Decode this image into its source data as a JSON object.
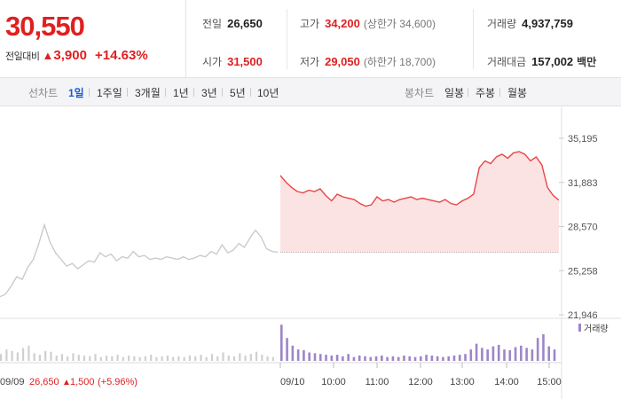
{
  "quote": {
    "price": "30,550",
    "change_label": "전일대비",
    "change_amount": "3,900",
    "change_percent": "+14.63%"
  },
  "stats": {
    "prev_close": {
      "label": "전일",
      "value": "26,650"
    },
    "open": {
      "label": "시가",
      "value": "31,500"
    },
    "high": {
      "label": "고가",
      "value": "34,200",
      "limit_label": "(상한가 34,600)"
    },
    "low": {
      "label": "저가",
      "value": "29,050",
      "limit_label": "(하한가 18,700)"
    },
    "volume": {
      "label": "거래량",
      "value": "4,937,759"
    },
    "trade_value": {
      "label": "거래대금",
      "value": "157,002",
      "unit": "백만"
    }
  },
  "line_tabs": {
    "label": "선차트",
    "items": [
      "1일",
      "1주일",
      "3개월",
      "1년",
      "3년",
      "5년",
      "10년"
    ],
    "active": "1일"
  },
  "candle_tabs": {
    "label": "봉차트",
    "items": [
      "일봉",
      "주봉",
      "월봉"
    ]
  },
  "colors": {
    "up": "#e02020",
    "down": "#1a5bd6",
    "prev_day_line": "#c8c8c8",
    "today_line": "#e84545",
    "today_fill": "#fbe3e3",
    "volume_bar": "#9d86c7"
  },
  "chart_data": {
    "type": "line",
    "y_ticks": [
      "35,195",
      "31,883",
      "28,570",
      "25,258",
      "21,946"
    ],
    "ylim": [
      21946,
      35195
    ],
    "reference_price": 26650,
    "x_tick_labels": [
      "09/10",
      "10:00",
      "11:00",
      "12:00",
      "13:00",
      "14:00",
      "15:00"
    ],
    "prev_day": {
      "date_label": "09/09",
      "close_label": "26,650",
      "change_label": "1,500",
      "change_pct_label": "(+5.96%)",
      "values": [
        23300,
        23500,
        24100,
        24800,
        24600,
        25500,
        26100,
        27300,
        28700,
        27400,
        26600,
        26100,
        25600,
        25800,
        25400,
        25700,
        26000,
        25900,
        26600,
        26300,
        26500,
        26000,
        26300,
        26200,
        26700,
        26300,
        26400,
        26100,
        26200,
        26100,
        26300,
        26200,
        26100,
        26300,
        26100,
        26200,
        26400,
        26300,
        26700,
        26500,
        27200,
        26600,
        26800,
        27300,
        27000,
        27700,
        28300,
        27800,
        26900,
        26700,
        26650
      ]
    },
    "today": {
      "values": [
        32400,
        31900,
        31500,
        31200,
        31100,
        31300,
        31200,
        31400,
        30900,
        30500,
        31000,
        30800,
        30700,
        30600,
        30300,
        30100,
        30200,
        30800,
        30500,
        30600,
        30400,
        30600,
        30700,
        30800,
        30600,
        30700,
        30600,
        30500,
        30400,
        30600,
        30300,
        30200,
        30500,
        30700,
        31000,
        33000,
        33500,
        33300,
        33800,
        34000,
        33700,
        34100,
        34200,
        34000,
        33500,
        33800,
        33200,
        31500,
        30900,
        30550
      ]
    },
    "volume_series": {
      "name": "거래량",
      "prev_day": [
        18,
        30,
        26,
        22,
        34,
        40,
        20,
        16,
        26,
        24,
        14,
        18,
        12,
        20,
        16,
        14,
        12,
        18,
        10,
        14,
        12,
        16,
        10,
        14,
        12,
        10,
        12,
        16,
        10,
        12,
        14,
        10,
        12,
        10,
        14,
        12,
        16,
        10,
        18,
        12,
        22,
        14,
        12,
        20,
        14,
        18,
        24,
        16,
        12,
        10
      ],
      "today": [
        95,
        60,
        40,
        30,
        28,
        22,
        20,
        18,
        16,
        14,
        16,
        12,
        18,
        10,
        14,
        12,
        10,
        12,
        14,
        10,
        12,
        10,
        14,
        12,
        10,
        12,
        16,
        14,
        12,
        10,
        12,
        14,
        16,
        18,
        30,
        45,
        34,
        30,
        38,
        42,
        30,
        28,
        36,
        40,
        34,
        30,
        60,
        70,
        38,
        30
      ]
    }
  }
}
